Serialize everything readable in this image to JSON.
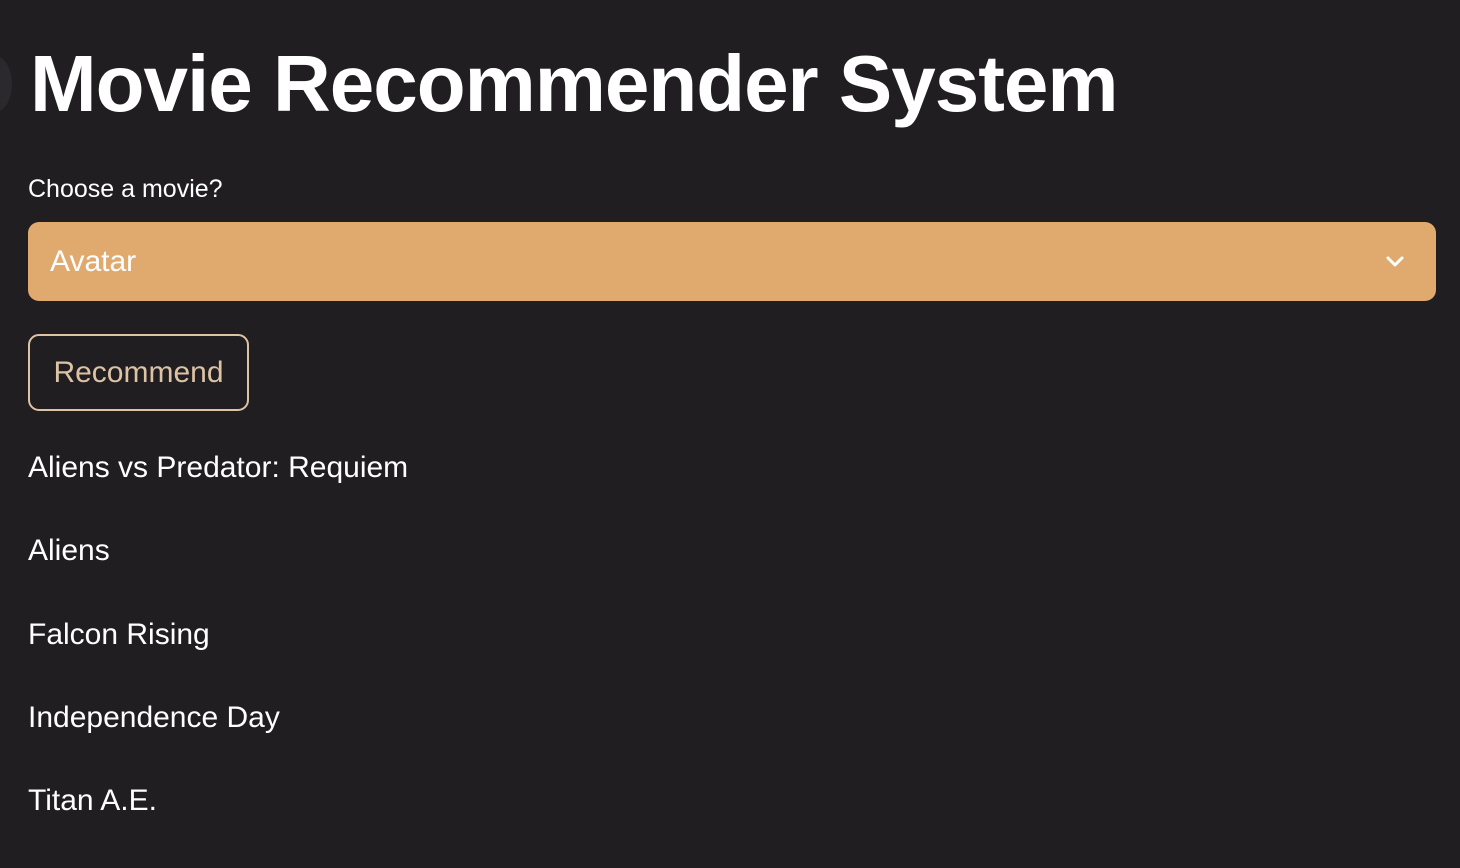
{
  "page": {
    "title": "Movie Recommender System",
    "background_color": "#201e21"
  },
  "movie_select": {
    "label": "Choose a movie?",
    "selected": "Avatar",
    "icon": "chevron-down-icon",
    "fill_color": "#e0a96d"
  },
  "recommend_button": {
    "label": "Recommend",
    "border_color": "#ddc3a5"
  },
  "recommendations": [
    "Aliens vs Predator: Requiem",
    "Aliens",
    "Falcon Rising",
    "Independence Day",
    "Titan A.E."
  ]
}
